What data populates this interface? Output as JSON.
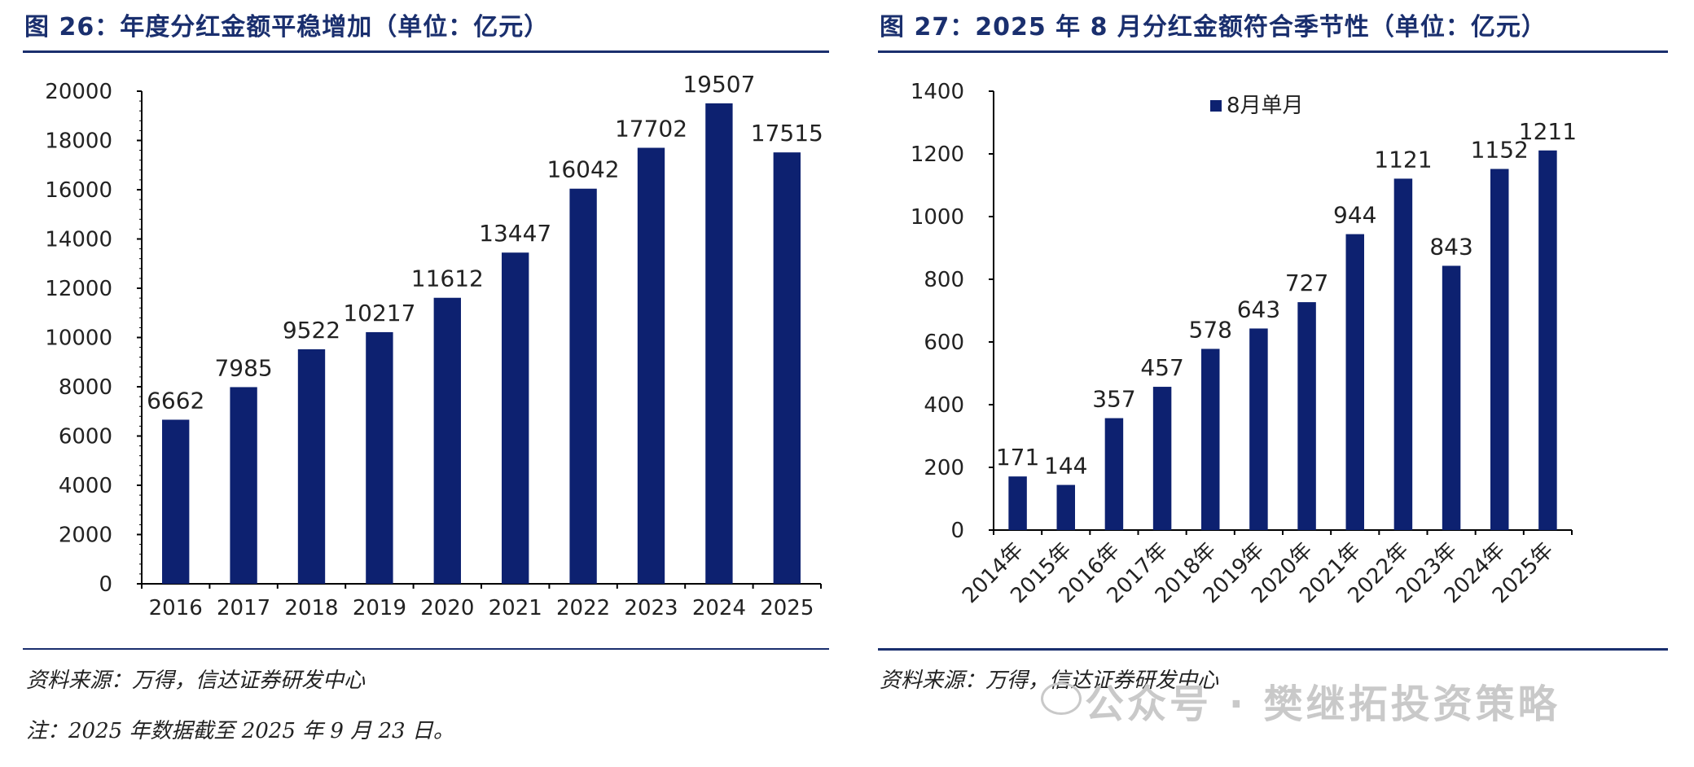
{
  "left_panel": {
    "title": "图 26：年度分红金额平稳增加（单位：亿元）",
    "source": "资料来源：万得，信达证券研发中心",
    "note": "注：2025 年数据截至 2025 年 9 月 23 日。"
  },
  "right_panel": {
    "title": "图 27：2025 年 8 月分红金额符合季节性（单位：亿元）",
    "source": "资料来源：万得，信达证券研发中心"
  },
  "watermark": "公众号 · 樊继拓投资策略",
  "colors": {
    "bar": "#0d2170",
    "title": "#1a2f6e",
    "rule": "#1a2f6e"
  },
  "chart_data": [
    {
      "type": "bar",
      "title": "",
      "categories": [
        "2016",
        "2017",
        "2018",
        "2019",
        "2020",
        "2021",
        "2022",
        "2023",
        "2024",
        "2025"
      ],
      "values": [
        6662,
        7985,
        9522,
        10217,
        11612,
        13447,
        16042,
        17702,
        19507,
        17515
      ],
      "ylim": [
        0,
        20000
      ],
      "yticks": [
        0,
        2000,
        4000,
        6000,
        8000,
        10000,
        12000,
        14000,
        16000,
        18000,
        20000
      ],
      "grid": false,
      "data_labels": true
    },
    {
      "type": "bar",
      "title": "",
      "categories": [
        "2014年",
        "2015年",
        "2016年",
        "2017年",
        "2018年",
        "2019年",
        "2020年",
        "2021年",
        "2022年",
        "2023年",
        "2024年",
        "2025年"
      ],
      "series": [
        {
          "name": "8月单月",
          "values": [
            171,
            144,
            357,
            457,
            578,
            643,
            727,
            944,
            1121,
            843,
            1152,
            1211
          ]
        }
      ],
      "ylim": [
        0,
        1400
      ],
      "yticks": [
        0,
        200,
        400,
        600,
        800,
        1000,
        1200,
        1400
      ],
      "legend": "top",
      "grid": false,
      "data_labels": true,
      "xtick_rotation": -45
    }
  ]
}
